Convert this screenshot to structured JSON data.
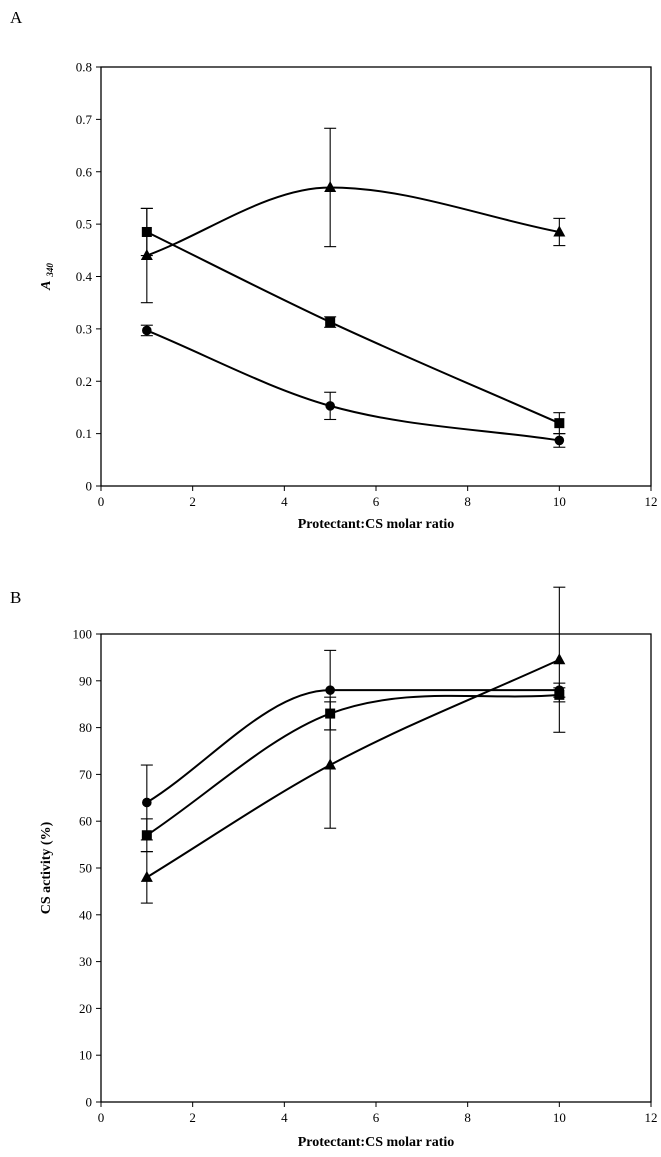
{
  "chart_data": [
    {
      "panel_label": "A",
      "type": "line",
      "xlabel": "Protectant:CS molar ratio",
      "ylabel_main": "A",
      "ylabel_sub": "340",
      "xlim": [
        0,
        12
      ],
      "ylim": [
        0,
        0.8
      ],
      "xticks": [
        0,
        2,
        4,
        6,
        8,
        10,
        12
      ],
      "yticks": [
        0,
        0.1,
        0.2,
        0.3,
        0.4,
        0.5,
        0.6,
        0.7,
        0.8
      ],
      "ytick_labels": [
        "0",
        "0.1",
        "0.2",
        "0.3",
        "0.4",
        "0.5",
        "0.6",
        "0.7",
        "0.8"
      ],
      "grid": false,
      "series": [
        {
          "marker": "triangle",
          "x": [
            1,
            5,
            10
          ],
          "y": [
            0.44,
            0.57,
            0.485
          ],
          "err": [
            0.09,
            0.113,
            0.026
          ],
          "color": "#000000"
        },
        {
          "marker": "square",
          "x": [
            1,
            5,
            10
          ],
          "y": [
            0.485,
            0.313,
            0.12
          ],
          "err": [
            0.045,
            0.01,
            0.02
          ],
          "color": "#000000"
        },
        {
          "marker": "circle",
          "x": [
            1,
            5,
            10
          ],
          "y": [
            0.297,
            0.153,
            0.087
          ],
          "err": [
            0.01,
            0.026,
            0.013
          ],
          "color": "#000000"
        }
      ]
    },
    {
      "panel_label": "B",
      "type": "line",
      "xlabel": "Protectant:CS molar ratio",
      "ylabel_main": "CS activity (%)",
      "ylabel_sub": "",
      "xlim": [
        0,
        12
      ],
      "ylim": [
        0,
        100
      ],
      "xticks": [
        0,
        2,
        4,
        6,
        8,
        10,
        12
      ],
      "yticks": [
        0,
        10,
        20,
        30,
        40,
        50,
        60,
        70,
        80,
        90,
        100
      ],
      "ytick_labels": [
        "0",
        "10",
        "20",
        "30",
        "40",
        "50",
        "60",
        "70",
        "80",
        "90",
        "100"
      ],
      "grid": false,
      "series": [
        {
          "marker": "circle",
          "x": [
            1,
            5,
            10
          ],
          "y": [
            64,
            88,
            88
          ],
          "err": [
            8,
            8.5,
            1.5
          ],
          "color": "#000000"
        },
        {
          "marker": "square",
          "x": [
            1,
            5,
            10
          ],
          "y": [
            57,
            83,
            87
          ],
          "err": [
            3.5,
            3.5,
            1.5
          ],
          "color": "#000000"
        },
        {
          "marker": "triangle",
          "x": [
            1,
            5,
            10
          ],
          "y": [
            48,
            72,
            94.5
          ],
          "err": [
            5.5,
            13.5,
            15.5
          ],
          "color": "#000000"
        }
      ]
    }
  ]
}
